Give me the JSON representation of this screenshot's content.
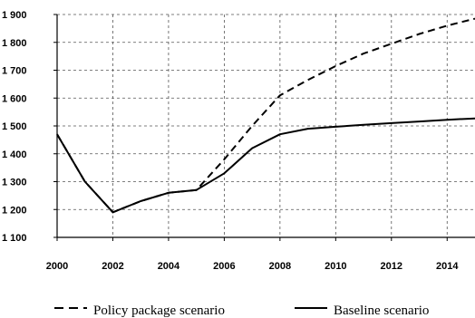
{
  "chart_data": {
    "type": "line",
    "title": "",
    "xlabel": "",
    "ylabel": "",
    "xlim": [
      2000,
      2015
    ],
    "ylim": [
      1100,
      1900
    ],
    "x_ticks": [
      2000,
      2002,
      2004,
      2006,
      2008,
      2010,
      2012,
      2014
    ],
    "x_tick_labels": [
      "2000",
      "2002",
      "2004",
      "2006",
      "2008",
      "2010",
      "2012",
      "2014"
    ],
    "y_ticks": [
      1100,
      1200,
      1300,
      1400,
      1500,
      1600,
      1700,
      1800,
      1900
    ],
    "y_tick_labels": [
      "1 100",
      "1 200",
      "1 300",
      "1 400",
      "1 500",
      "1 600",
      "1 700",
      "1 800",
      "1 900"
    ],
    "grid": true,
    "legend_position": "bottom",
    "series": [
      {
        "name": "Policy package scenario",
        "style": "dashed",
        "color": "#000000",
        "x": [
          2000,
          2001,
          2002,
          2003,
          2004,
          2005,
          2006,
          2007,
          2008,
          2009,
          2010,
          2011,
          2012,
          2013,
          2014,
          2015
        ],
        "values": [
          1470,
          1300,
          1190,
          1230,
          1260,
          1270,
          1380,
          1500,
          1610,
          1665,
          1715,
          1760,
          1795,
          1830,
          1860,
          1885
        ]
      },
      {
        "name": "Baseline scenario",
        "style": "solid",
        "color": "#000000",
        "x": [
          2000,
          2001,
          2002,
          2003,
          2004,
          2005,
          2006,
          2007,
          2008,
          2009,
          2010,
          2011,
          2012,
          2013,
          2014,
          2015
        ],
        "values": [
          1470,
          1300,
          1190,
          1230,
          1260,
          1270,
          1330,
          1420,
          1470,
          1490,
          1497,
          1504,
          1510,
          1516,
          1522,
          1527
        ]
      }
    ]
  }
}
